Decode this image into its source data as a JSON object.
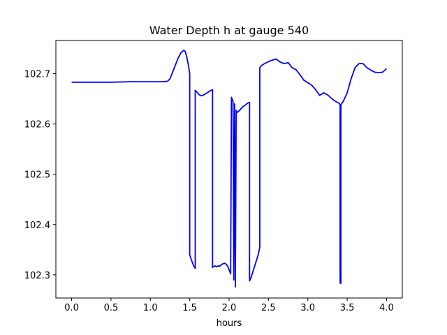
{
  "chart_data": {
    "type": "line",
    "title": "Water Depth h at gauge 540",
    "xlabel": "hours",
    "ylabel": "",
    "xlim": [
      -0.2,
      4.2
    ],
    "ylim": [
      102.254,
      102.766
    ],
    "xticks": [
      0.0,
      0.5,
      1.0,
      1.5,
      2.0,
      2.5,
      3.0,
      3.5,
      4.0
    ],
    "xtick_labels": [
      "0.0",
      "0.5",
      "1.0",
      "1.5",
      "2.0",
      "2.5",
      "3.0",
      "3.5",
      "4.0"
    ],
    "yticks": [
      102.3,
      102.4,
      102.5,
      102.6,
      102.7
    ],
    "ytick_labels": [
      "102.3",
      "102.4",
      "102.5",
      "102.6",
      "102.7"
    ],
    "grid": false,
    "series": [
      {
        "color": "#0000ff",
        "x": [
          0.0,
          0.25,
          0.5,
          0.75,
          1.0,
          1.15,
          1.22,
          1.25,
          1.3,
          1.35,
          1.39,
          1.42,
          1.44,
          1.46,
          1.48,
          1.5,
          1.5,
          1.52,
          1.55,
          1.57,
          1.57,
          1.6,
          1.62,
          1.65,
          1.68,
          1.72,
          1.76,
          1.79,
          1.79,
          1.82,
          1.84,
          1.86,
          1.88,
          1.9,
          1.92,
          1.95,
          1.98,
          2.02,
          2.03,
          2.05,
          2.06,
          2.07,
          2.08,
          2.09,
          2.1,
          2.12,
          2.15,
          2.18,
          2.21,
          2.24,
          2.26,
          2.26,
          2.28,
          2.31,
          2.34,
          2.37,
          2.39,
          2.39,
          2.41,
          2.45,
          2.5,
          2.55,
          2.6,
          2.65,
          2.7,
          2.75,
          2.8,
          2.85,
          2.9,
          2.95,
          3.0,
          3.05,
          3.1,
          3.15,
          3.2,
          3.25,
          3.3,
          3.35,
          3.4,
          3.41,
          3.41,
          3.42,
          3.42,
          3.45,
          3.5,
          3.55,
          3.6,
          3.65,
          3.7,
          3.75,
          3.8,
          3.85,
          3.9,
          3.95,
          4.0
        ],
        "y": [
          102.683,
          102.683,
          102.683,
          102.684,
          102.684,
          102.684,
          102.685,
          102.69,
          102.71,
          102.73,
          102.742,
          102.746,
          102.745,
          102.735,
          102.72,
          102.7,
          102.34,
          102.33,
          102.318,
          102.313,
          102.667,
          102.662,
          102.658,
          102.656,
          102.658,
          102.662,
          102.666,
          102.668,
          102.315,
          102.318,
          102.316,
          102.318,
          102.317,
          102.32,
          102.322,
          102.323,
          102.318,
          102.302,
          102.653,
          102.645,
          102.29,
          102.64,
          102.276,
          102.627,
          102.623,
          102.625,
          102.63,
          102.635,
          102.638,
          102.642,
          102.643,
          102.288,
          102.295,
          102.31,
          102.325,
          102.34,
          102.355,
          102.712,
          102.716,
          102.72,
          102.724,
          102.727,
          102.729,
          102.723,
          102.72,
          102.722,
          102.712,
          102.708,
          102.698,
          102.687,
          102.682,
          102.677,
          102.668,
          102.657,
          102.662,
          102.658,
          102.651,
          102.645,
          102.641,
          102.638,
          102.284,
          102.283,
          102.638,
          102.645,
          102.662,
          102.69,
          102.712,
          102.72,
          102.72,
          102.712,
          102.707,
          102.703,
          102.702,
          102.703,
          102.71
        ]
      }
    ]
  }
}
